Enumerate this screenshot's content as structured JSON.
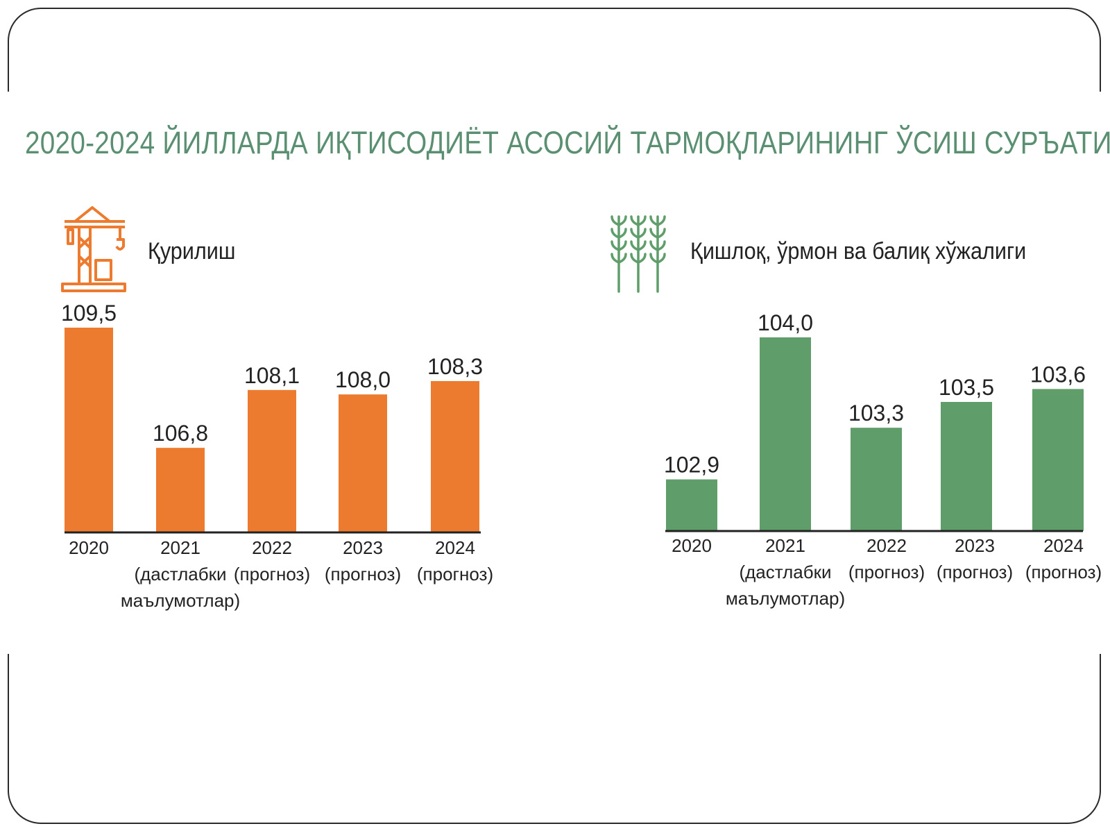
{
  "title": "2020-2024 ЙИЛЛАРДА ИҚТИСОДИЁТ АСОСИЙ ТАРМОҚЛАРИНИНГ ЎСИШ СУРЪАТИ",
  "colors": {
    "construction": "#ec7a2f",
    "agriculture": "#5f9e6a",
    "title": "#5a8f71"
  },
  "icons": {
    "construction": "crane-icon",
    "agriculture": "wheat-icon"
  },
  "chart_data": [
    {
      "type": "bar",
      "title": "Қурилиш",
      "categories": [
        "2020",
        "2021\n(дастлабки\nмаълумотлар)",
        "2022\n(прогноз)",
        "2023\n(прогноз)",
        "2024\n(прогноз)"
      ],
      "values": [
        109.5,
        106.8,
        108.1,
        108.0,
        108.3
      ],
      "value_labels": [
        "109,5",
        "106,8",
        "108,1",
        "108,0",
        "108,3"
      ],
      "xlabel": "",
      "ylabel": "",
      "ylim": [
        104.9,
        109.5
      ],
      "grid": false
    },
    {
      "type": "bar",
      "title": "Қишлоқ, ўрмон ва балиқ хўжалиги",
      "categories": [
        "2020",
        "2021\n(дастлабки\nмаълумотлар)",
        "2022\n(прогноз)",
        "2023\n(прогноз)",
        "2024\n(прогноз)"
      ],
      "values": [
        102.9,
        104.0,
        103.3,
        103.5,
        103.6
      ],
      "value_labels": [
        "102,9",
        "104,0",
        "103,3",
        "103,5",
        "103,6"
      ],
      "xlabel": "",
      "ylabel": "",
      "ylim": [
        102.5,
        104.0
      ],
      "grid": false
    }
  ]
}
